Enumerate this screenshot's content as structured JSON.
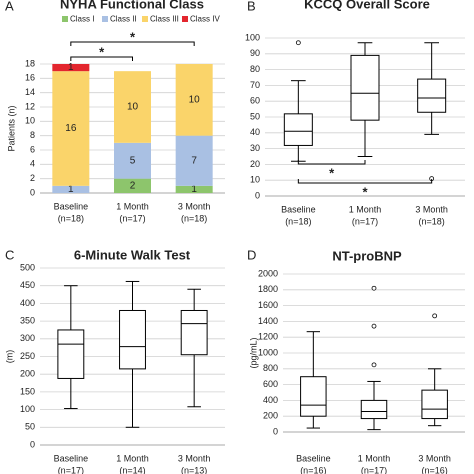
{
  "chart_data": [
    {
      "type": "bar",
      "panel_label": "A",
      "title": "NYHA Functional Class",
      "ylabel": "Patients (n)",
      "categories": [
        [
          "Baseline",
          "(n=18)"
        ],
        [
          "1 Month",
          "(n=17)"
        ],
        [
          "3 Month",
          "(n=18)"
        ]
      ],
      "series": [
        {
          "name": "Class I",
          "color": "#8dc56c",
          "values": [
            0,
            2,
            1
          ]
        },
        {
          "name": "Class II",
          "color": "#a9c0e3",
          "values": [
            1,
            5,
            7
          ]
        },
        {
          "name": "Class III",
          "color": "#fad46a",
          "values": [
            16,
            10,
            10
          ]
        },
        {
          "name": "Class IV",
          "color": "#e3262e",
          "values": [
            1,
            0,
            0
          ]
        }
      ],
      "ylim": [
        0,
        18
      ],
      "yticks": [
        0,
        2,
        4,
        6,
        8,
        10,
        12,
        14,
        16,
        18
      ],
      "grid": true,
      "legend": "top",
      "annotations": [
        "*",
        "*"
      ]
    },
    {
      "type": "box",
      "panel_label": "B",
      "title": "KCCQ Overall Score",
      "categories": [
        [
          "Baseline",
          "(n=18)"
        ],
        [
          "1 Month",
          "(n=17)"
        ],
        [
          "3 Month",
          "(n=18)"
        ]
      ],
      "boxes": [
        {
          "min": 22,
          "q1": 32,
          "median": 41,
          "q3": 52,
          "max": 73,
          "outliers": [
            97
          ]
        },
        {
          "min": 25,
          "q1": 48,
          "median": 65,
          "q3": 89,
          "max": 97,
          "outliers": []
        },
        {
          "min": 39,
          "q1": 53,
          "median": 62,
          "q3": 74,
          "max": 97,
          "outliers": [
            11
          ]
        }
      ],
      "ylim": [
        0,
        100
      ],
      "yticks": [
        0,
        10,
        20,
        30,
        40,
        50,
        60,
        70,
        80,
        90,
        100
      ],
      "grid": true,
      "annotations": [
        "*",
        "*"
      ]
    },
    {
      "type": "box",
      "panel_label": "C",
      "title": "6-Minute Walk Test",
      "ylabel": "(m)",
      "categories": [
        [
          "Baseline",
          "(n=17)"
        ],
        [
          "1 Month",
          "(n=14)"
        ],
        [
          "3 Month",
          "(n=13)"
        ]
      ],
      "boxes": [
        {
          "min": 103,
          "q1": 188,
          "median": 285,
          "q3": 325,
          "max": 450,
          "outliers": []
        },
        {
          "min": 50,
          "q1": 215,
          "median": 278,
          "q3": 380,
          "max": 462,
          "outliers": []
        },
        {
          "min": 108,
          "q1": 255,
          "median": 343,
          "q3": 380,
          "max": 440,
          "outliers": []
        }
      ],
      "ylim": [
        0,
        500
      ],
      "yticks": [
        0,
        50,
        100,
        150,
        200,
        250,
        300,
        350,
        400,
        450,
        500
      ],
      "grid": true
    },
    {
      "type": "box",
      "panel_label": "D",
      "title": "NT-proBNP",
      "ylabel": "(pg/mL)",
      "categories": [
        [
          "Baseline",
          "(n=16)"
        ],
        [
          "1 Month",
          "(n=17)"
        ],
        [
          "3 Month",
          "(n=16)"
        ]
      ],
      "boxes": [
        {
          "min": 50,
          "q1": 200,
          "median": 340,
          "q3": 700,
          "max": 1270,
          "outliers": []
        },
        {
          "min": 30,
          "q1": 170,
          "median": 260,
          "q3": 400,
          "max": 640,
          "outliers": [
            850,
            1340,
            1820
          ]
        },
        {
          "min": 80,
          "q1": 170,
          "median": 290,
          "q3": 530,
          "max": 800,
          "outliers": [
            1470
          ]
        }
      ],
      "ylim": [
        0,
        2000
      ],
      "yticks": [
        0,
        200,
        400,
        600,
        800,
        1000,
        1200,
        1400,
        1600,
        1800,
        2000
      ],
      "grid": true
    }
  ]
}
